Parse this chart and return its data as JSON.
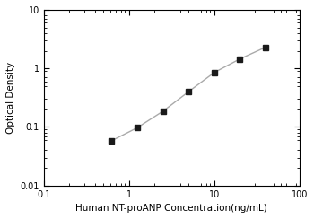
{
  "x": [
    0.625,
    1.25,
    2.5,
    5,
    10,
    20,
    40
  ],
  "y": [
    0.058,
    0.097,
    0.185,
    0.4,
    0.85,
    1.45,
    2.3
  ],
  "xlim": [
    0.2,
    100
  ],
  "ylim": [
    0.01,
    10
  ],
  "xlabel": "Human NT-proANP Concentration(ng/mL)",
  "ylabel": "Optical Density",
  "marker": "s",
  "marker_color": "#1a1a1a",
  "marker_size": 4,
  "line_color": "#aaaaaa",
  "line_width": 1.0,
  "background_color": "#ffffff",
  "xlabel_fontsize": 7.5,
  "ylabel_fontsize": 7.5,
  "tick_fontsize": 7,
  "xtick_labels": [
    "0.1",
    "1",
    "10",
    "100"
  ],
  "xtick_values": [
    0.1,
    1,
    10,
    100
  ],
  "ytick_labels": [
    "0.01",
    "0.1",
    "1",
    "10"
  ],
  "ytick_values": [
    0.01,
    0.1,
    1,
    10
  ]
}
